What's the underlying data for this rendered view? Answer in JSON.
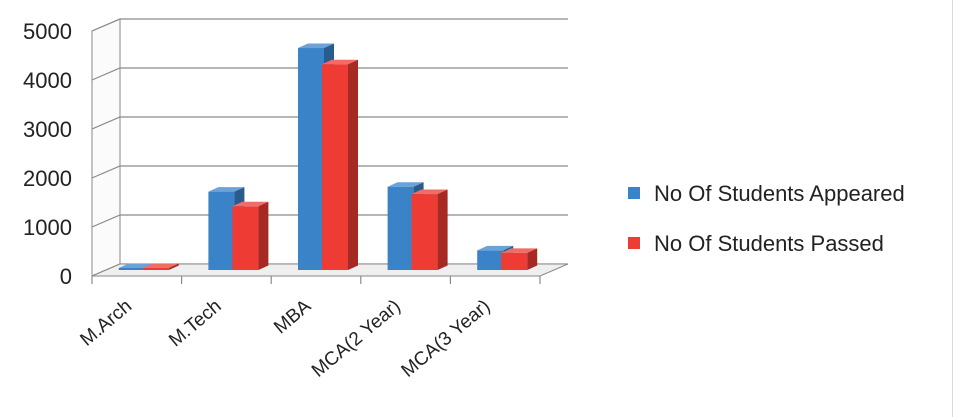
{
  "chart_data": {
    "type": "bar",
    "title": "",
    "xlabel": "",
    "ylabel": "",
    "categories": [
      "M.Arch",
      "M.Tech",
      "MBA",
      "MCA(2 Year)",
      "MCA(3 Year)"
    ],
    "series": [
      {
        "name": "No Of Students Appeared",
        "values": [
          40,
          1600,
          4530,
          1700,
          400
        ],
        "color": "#3a83c9"
      },
      {
        "name": "No Of Students Passed",
        "values": [
          35,
          1300,
          4200,
          1550,
          350
        ],
        "color": "#ee3b34"
      }
    ],
    "ylim": [
      0,
      5000
    ],
    "yticks": [
      "0",
      "1000",
      "2000",
      "3000",
      "4000",
      "5000"
    ],
    "grid": true,
    "legend_position": "right",
    "style": "3d-clustered-column"
  }
}
